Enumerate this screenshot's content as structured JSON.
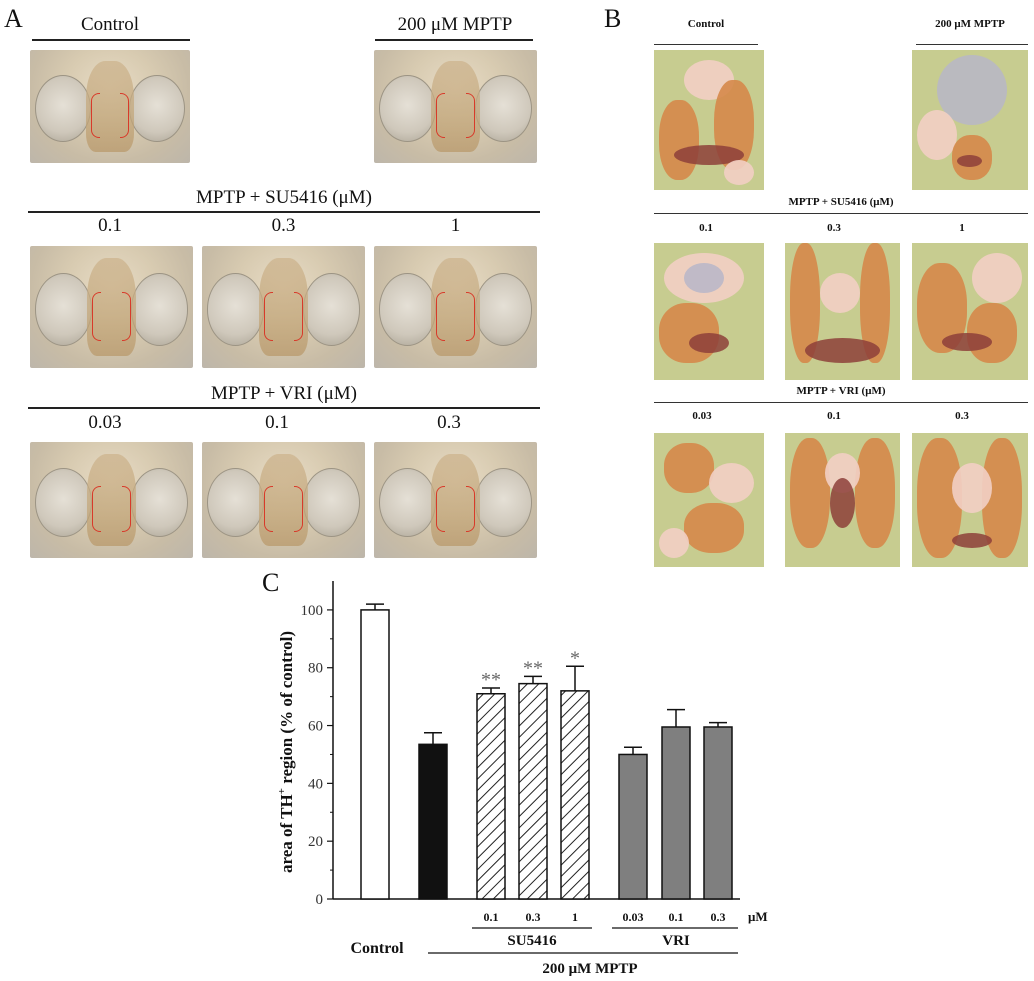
{
  "panels": {
    "a": "A",
    "b": "B",
    "c": "C"
  },
  "panel_a": {
    "control_label": "Control",
    "mptp_label": "200 μM MPTP",
    "su_title": "MPTP + SU5416 (μM)",
    "su_doses": [
      "0.1",
      "0.3",
      "1"
    ],
    "vri_title": "MPTP + VRI (μM)",
    "vri_doses": [
      "0.03",
      "0.1",
      "0.3"
    ]
  },
  "panel_b": {
    "control_label": "Control",
    "mptp_label": "200 μM MPTP",
    "su_title": "MPTP + SU5416 (μM)",
    "su_doses": [
      "0.1",
      "0.3",
      "1"
    ],
    "vri_title": "MPTP + VRI (μM)",
    "vri_doses": [
      "0.03",
      "0.1",
      "0.3"
    ]
  },
  "chart_data": {
    "type": "bar",
    "ylabel_main": "area of TH",
    "ylabel_sup": "+",
    "ylabel_rest": " region (% of control)",
    "ylim": [
      0,
      110
    ],
    "yticks": [
      0,
      20,
      40,
      60,
      80,
      100
    ],
    "grid": false,
    "legend": "none",
    "bars": [
      {
        "group": "Control",
        "dose": "",
        "value": 100,
        "error": 2,
        "fill": "white",
        "sig": ""
      },
      {
        "group": "MPTP",
        "dose": "",
        "value": 53.5,
        "error": 4,
        "fill": "black",
        "sig": ""
      },
      {
        "group": "SU5416",
        "dose": "0.1",
        "value": 71,
        "error": 2,
        "fill": "hatch",
        "sig": "**"
      },
      {
        "group": "SU5416",
        "dose": "0.3",
        "value": 74.5,
        "error": 2.5,
        "fill": "hatch",
        "sig": "**"
      },
      {
        "group": "SU5416",
        "dose": "1",
        "value": 72,
        "error": 8.5,
        "fill": "hatch",
        "sig": "*"
      },
      {
        "group": "VRI",
        "dose": "0.03",
        "value": 50,
        "error": 2.5,
        "fill": "gray",
        "sig": ""
      },
      {
        "group": "VRI",
        "dose": "0.1",
        "value": 59.5,
        "error": 6,
        "fill": "gray",
        "sig": ""
      },
      {
        "group": "VRI",
        "dose": "0.3",
        "value": 59.5,
        "error": 1.5,
        "fill": "gray",
        "sig": ""
      }
    ],
    "dose_unit": "μM",
    "group_labels": {
      "su": "SU5416",
      "vri": "VRI",
      "control": "Control",
      "mptp": "200 μM MPTP"
    },
    "colors": {
      "white": "#ffffff",
      "black": "#111111",
      "gray": "#7f7f7f",
      "hatch_line": "#222222",
      "sig": "#666666"
    }
  }
}
